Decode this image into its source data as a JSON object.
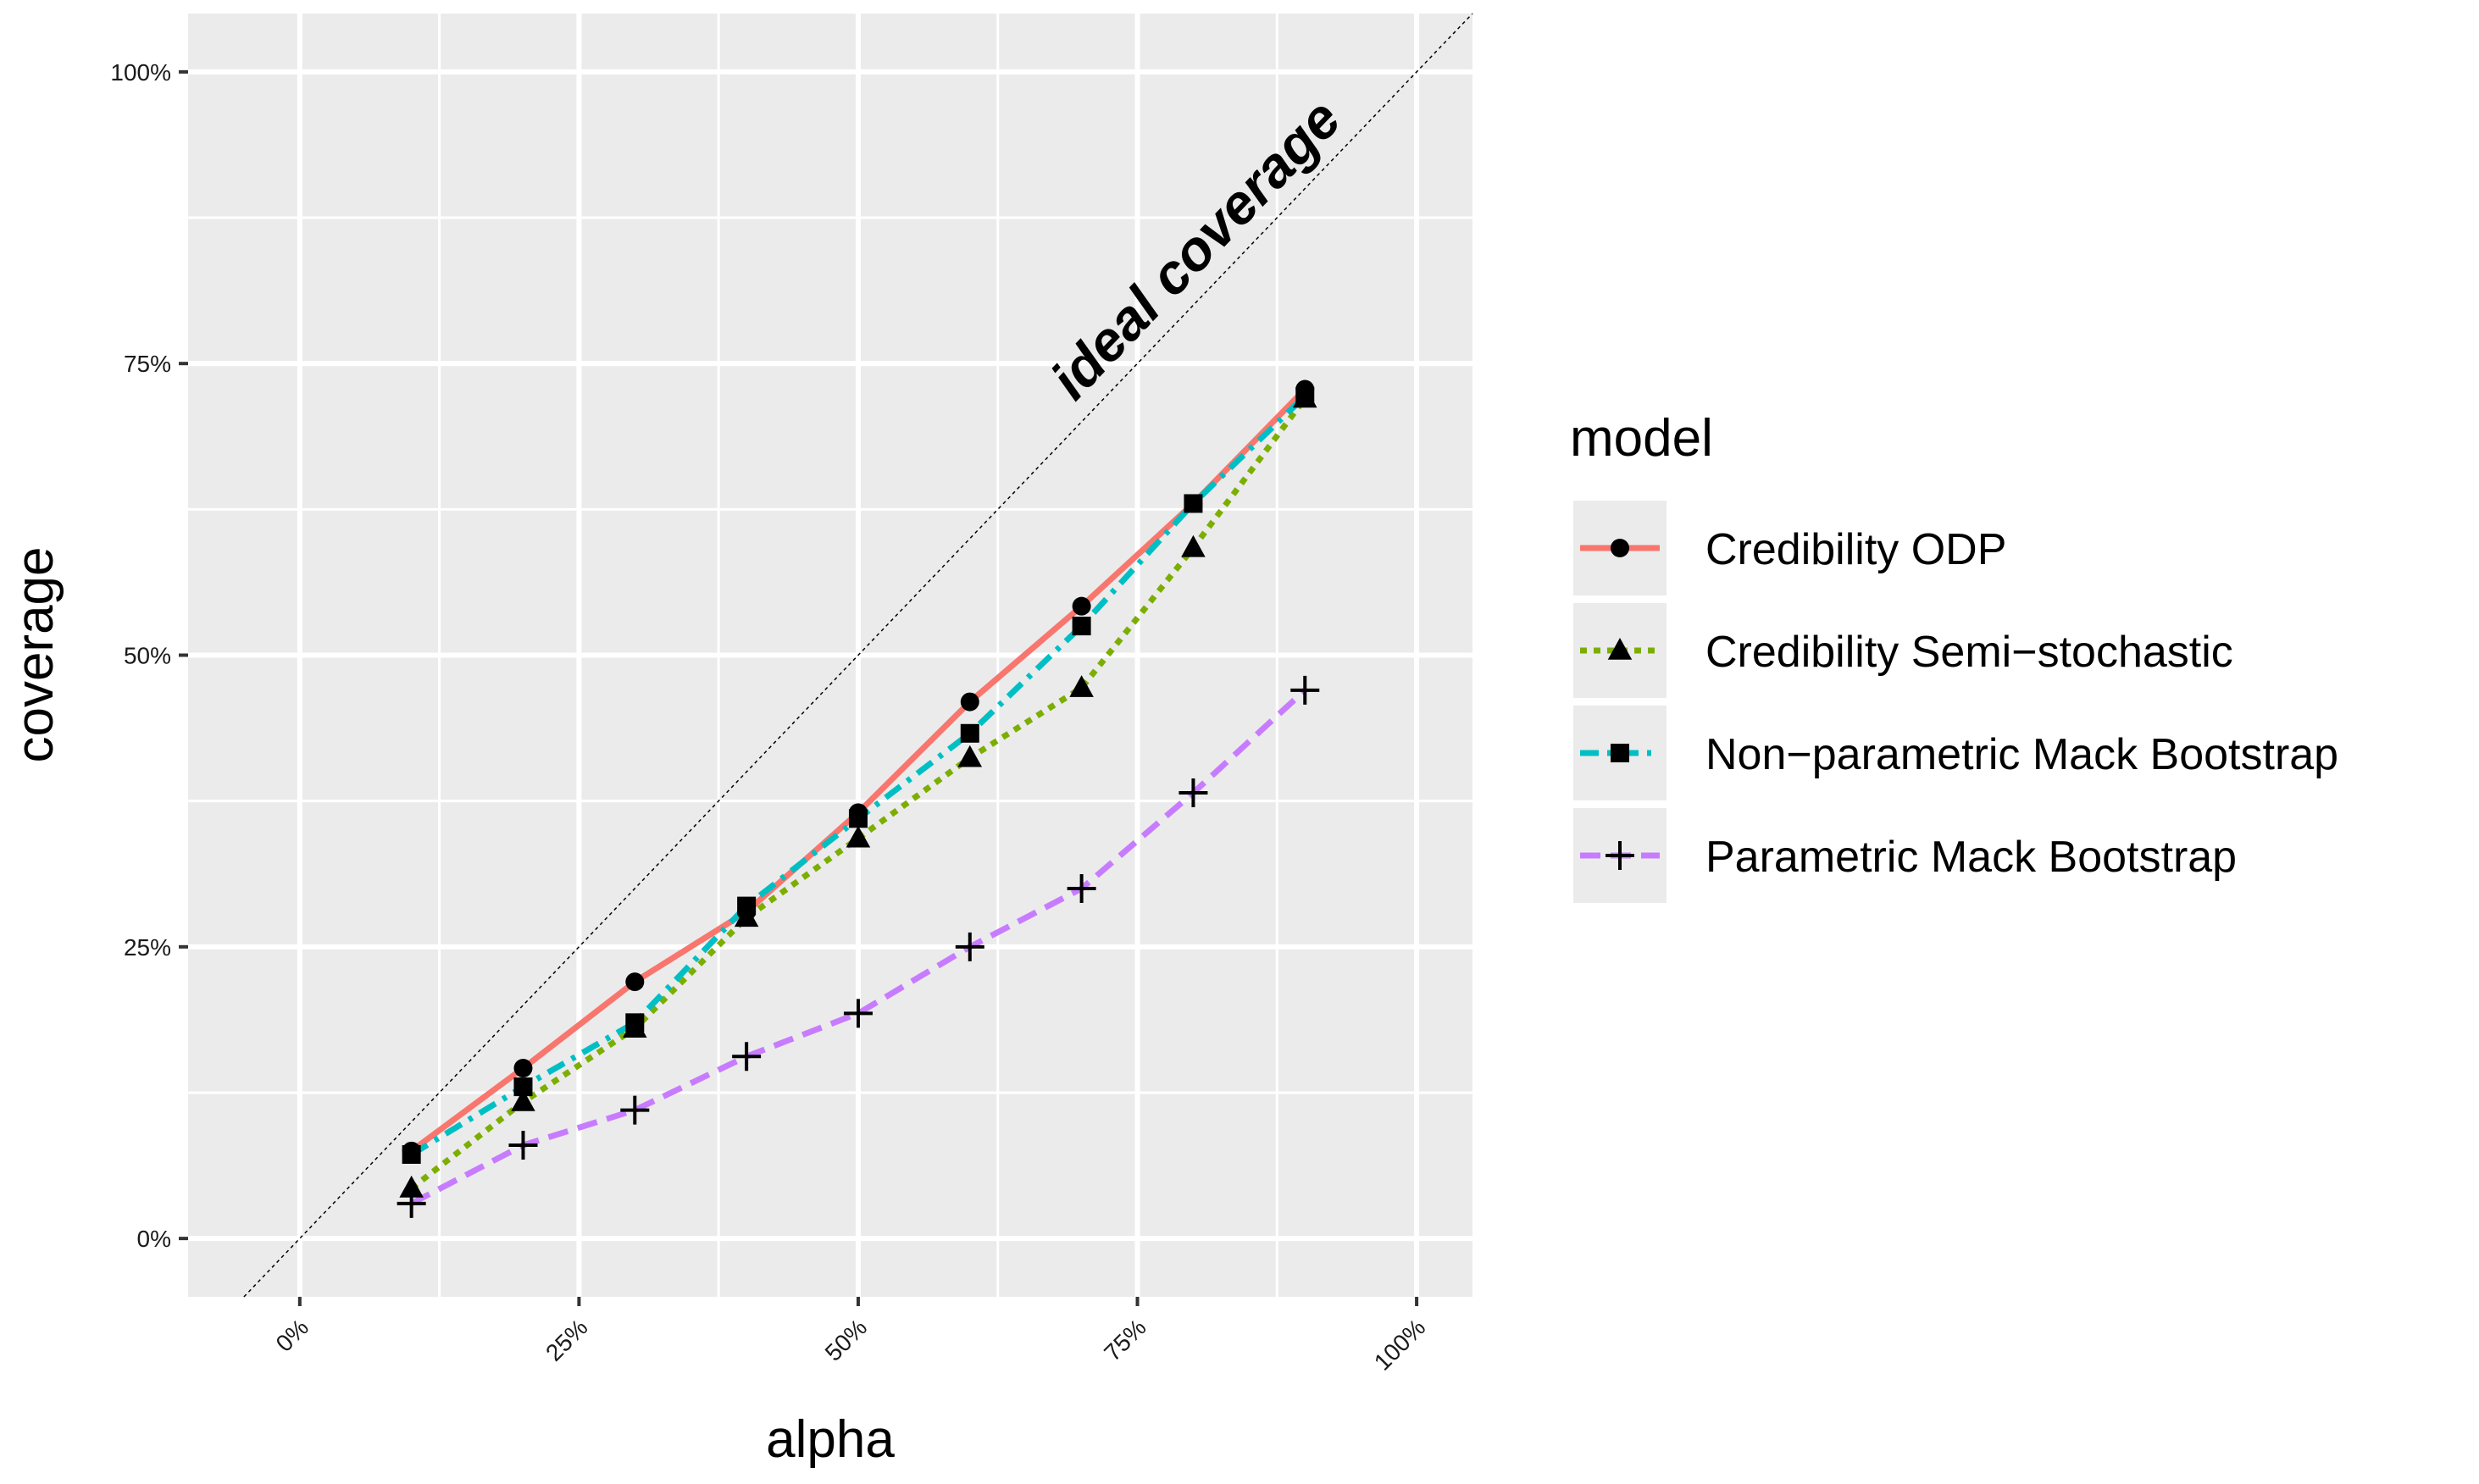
{
  "chart_data": {
    "type": "line",
    "xlabel": "alpha",
    "ylabel": "coverage",
    "xlim": [
      -0.1,
      1.05
    ],
    "ylim": [
      -0.05,
      1.05
    ],
    "x_ticks": [
      0,
      0.25,
      0.5,
      0.75,
      1.0
    ],
    "x_tick_labels": [
      "0%",
      "25%",
      "50%",
      "75%",
      "100%"
    ],
    "y_ticks": [
      0,
      0.25,
      0.5,
      0.75,
      1.0
    ],
    "y_tick_labels": [
      "0%",
      "25%",
      "50%",
      "75%",
      "100%"
    ],
    "grid": true,
    "legend_title": "model",
    "legend_position": "right",
    "annotation": {
      "text": "ideal coverage",
      "reference_line": "y = x"
    },
    "x": [
      0.1,
      0.2,
      0.3,
      0.4,
      0.5,
      0.6,
      0.7,
      0.8,
      0.9
    ],
    "series": [
      {
        "name": "Credibility ODP",
        "color": "#F8766D",
        "line_style": "solid",
        "marker": "circle",
        "values": [
          0.075,
          0.146,
          0.22,
          0.28,
          0.365,
          0.46,
          0.542,
          0.63,
          0.728
        ]
      },
      {
        "name": "Credibility Semi−stochastic",
        "color": "#7CAE00",
        "line_style": "dotted",
        "marker": "triangle",
        "values": [
          0.043,
          0.117,
          0.18,
          0.275,
          0.343,
          0.412,
          0.472,
          0.592,
          0.72
        ]
      },
      {
        "name": "Non−parametric Mack Bootstrap",
        "color": "#00BFC4",
        "line_style": "dashdot",
        "marker": "square",
        "values": [
          0.072,
          0.13,
          0.185,
          0.285,
          0.36,
          0.433,
          0.525,
          0.63,
          0.722
        ]
      },
      {
        "name": "Parametric Mack Bootstrap",
        "color": "#C77CFF",
        "line_style": "dashed",
        "marker": "plus",
        "values": [
          0.03,
          0.08,
          0.11,
          0.156,
          0.193,
          0.25,
          0.3,
          0.382,
          0.47
        ]
      }
    ]
  }
}
